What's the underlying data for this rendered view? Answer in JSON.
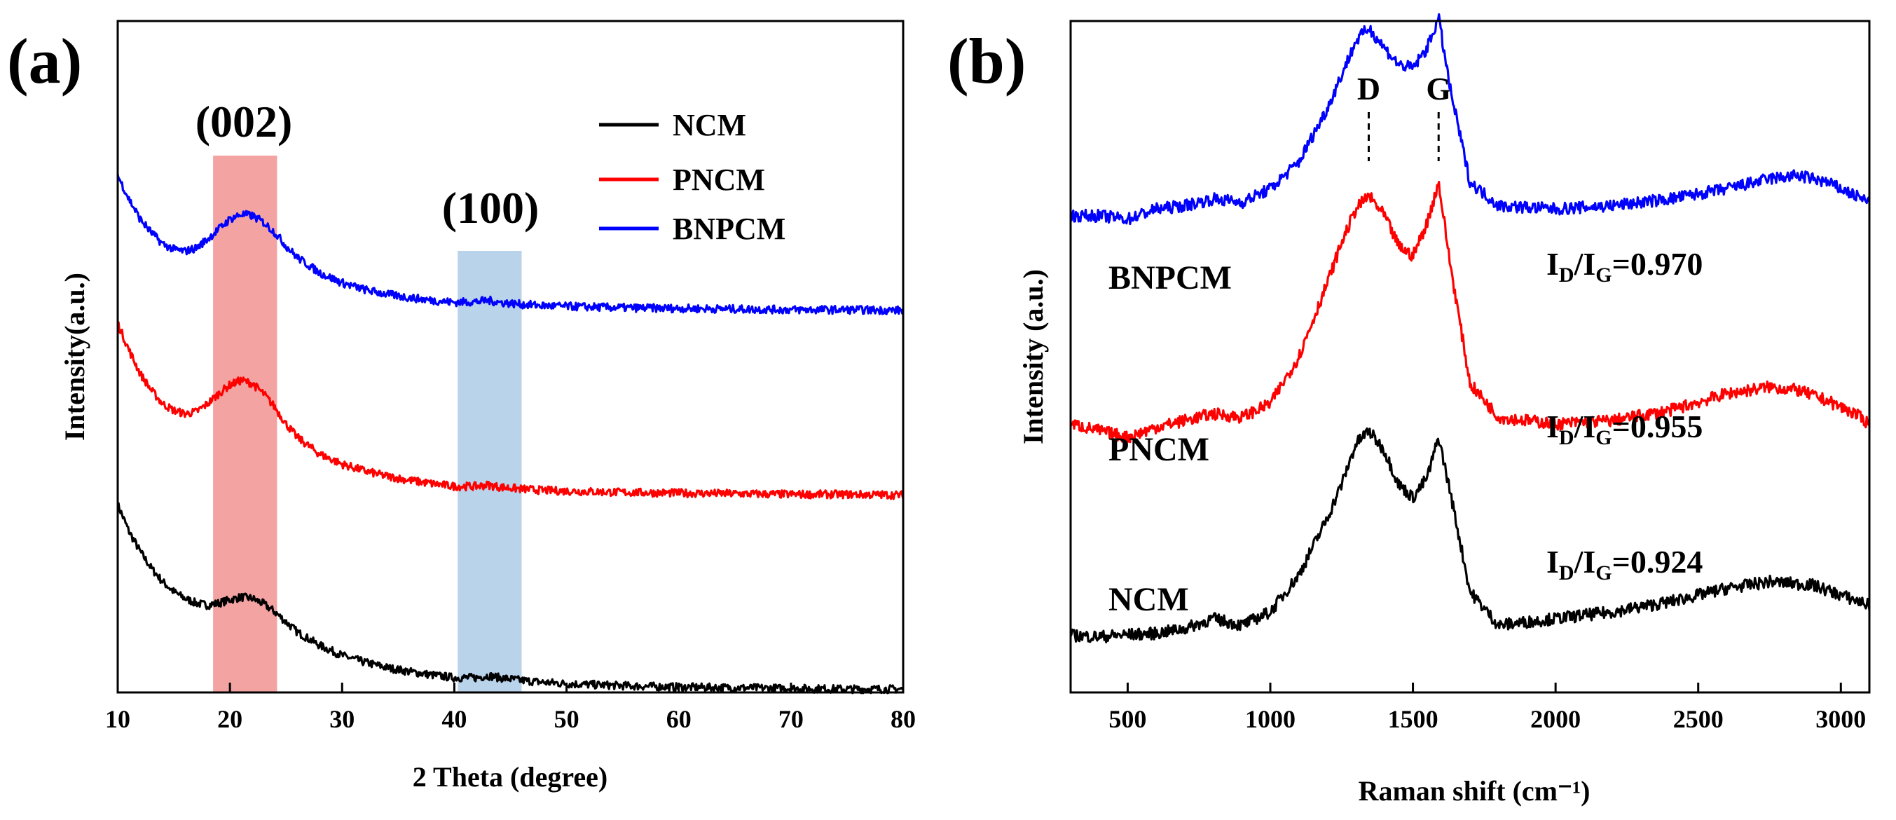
{
  "colors": {
    "NCM": "#000000",
    "PNCM": "#ff0000",
    "BNPCM": "#0000ff",
    "band_002": "#f4a3a3",
    "band_100": "#b9d3ea"
  },
  "chart_data": [
    {
      "panel": "(a)",
      "type": "line",
      "xlabel": "2 Theta (degree)",
      "ylabel": "Intensity(a.u.)",
      "xlim": [
        10,
        80
      ],
      "ylim": [
        0,
        1
      ],
      "xticks": [
        10,
        20,
        30,
        40,
        50,
        60,
        70,
        80
      ],
      "yticks_visible": false,
      "legend": {
        "position": "top-right",
        "entries": [
          "NCM",
          "PNCM",
          "BNPCM"
        ]
      },
      "bands": [
        {
          "label": "(002)",
          "from": 18.5,
          "to": 24.2,
          "color": "#f4a3a3"
        },
        {
          "label": "(100)",
          "from": 40.3,
          "to": 46.0,
          "color": "#b9d3ea"
        }
      ],
      "series": [
        {
          "name": "NCM",
          "color": "#000000",
          "x": [
            10,
            11,
            12,
            13,
            14,
            15,
            16,
            17,
            18,
            19,
            20,
            21,
            22,
            23,
            24,
            25,
            26,
            28,
            30,
            32,
            34,
            36,
            38,
            40,
            42,
            43,
            44,
            46,
            48,
            50,
            55,
            60,
            65,
            70,
            75,
            80
          ],
          "y": [
            0.28,
            0.24,
            0.21,
            0.185,
            0.165,
            0.15,
            0.14,
            0.133,
            0.13,
            0.133,
            0.138,
            0.142,
            0.14,
            0.132,
            0.12,
            0.105,
            0.09,
            0.07,
            0.055,
            0.045,
            0.037,
            0.031,
            0.026,
            0.022,
            0.022,
            0.025,
            0.022,
            0.018,
            0.015,
            0.013,
            0.01,
            0.008,
            0.007,
            0.006,
            0.005,
            0.005
          ]
        },
        {
          "name": "PNCM",
          "color": "#ff0000",
          "x": [
            10,
            11,
            12,
            13,
            14,
            15,
            16,
            17,
            18,
            19,
            20,
            21,
            22,
            23,
            24,
            25,
            26,
            28,
            30,
            32,
            34,
            36,
            38,
            40,
            42,
            43,
            44,
            46,
            48,
            50,
            55,
            60,
            65,
            70,
            75,
            80
          ],
          "y": [
            0.55,
            0.51,
            0.475,
            0.45,
            0.43,
            0.42,
            0.415,
            0.418,
            0.43,
            0.445,
            0.458,
            0.465,
            0.46,
            0.445,
            0.425,
            0.4,
            0.38,
            0.355,
            0.34,
            0.33,
            0.322,
            0.316,
            0.311,
            0.307,
            0.307,
            0.309,
            0.306,
            0.303,
            0.301,
            0.3,
            0.298,
            0.297,
            0.296,
            0.295,
            0.295,
            0.294
          ]
        },
        {
          "name": "BNPCM",
          "color": "#0000ff",
          "x": [
            10,
            11,
            12,
            13,
            14,
            15,
            16,
            17,
            18,
            19,
            20,
            21,
            22,
            23,
            24,
            25,
            26,
            28,
            30,
            32,
            34,
            36,
            38,
            40,
            42,
            43,
            44,
            46,
            48,
            50,
            55,
            60,
            65,
            70,
            75,
            80
          ],
          "y": [
            0.77,
            0.735,
            0.705,
            0.685,
            0.668,
            0.66,
            0.657,
            0.662,
            0.675,
            0.69,
            0.705,
            0.712,
            0.71,
            0.7,
            0.685,
            0.665,
            0.648,
            0.625,
            0.61,
            0.6,
            0.593,
            0.588,
            0.584,
            0.581,
            0.582,
            0.584,
            0.581,
            0.578,
            0.576,
            0.575,
            0.573,
            0.572,
            0.571,
            0.57,
            0.57,
            0.569
          ]
        }
      ]
    },
    {
      "panel": "(b)",
      "type": "line",
      "xlabel": "Raman shift (cm⁻¹)",
      "ylabel": "Intensity (a.u.)",
      "xlim": [
        300,
        3100
      ],
      "ylim": [
        0,
        1
      ],
      "xticks": [
        500,
        1000,
        1500,
        2000,
        2500,
        3000
      ],
      "yticks_visible": false,
      "peak_markers": [
        {
          "label": "D",
          "x": 1345
        },
        {
          "label": "G",
          "x": 1590
        }
      ],
      "series": [
        {
          "name": "NCM",
          "color": "#000000",
          "ratio": "0.924",
          "x": [
            300,
            400,
            500,
            600,
            700,
            800,
            900,
            1000,
            1100,
            1200,
            1250,
            1300,
            1345,
            1400,
            1450,
            1500,
            1550,
            1590,
            1630,
            1700,
            1800,
            2000,
            2200,
            2400,
            2600,
            2750,
            2900,
            3000,
            3100
          ],
          "y": [
            0.085,
            0.083,
            0.086,
            0.088,
            0.095,
            0.11,
            0.1,
            0.12,
            0.175,
            0.26,
            0.31,
            0.37,
            0.39,
            0.36,
            0.31,
            0.29,
            0.32,
            0.38,
            0.3,
            0.15,
            0.1,
            0.11,
            0.12,
            0.135,
            0.155,
            0.165,
            0.16,
            0.145,
            0.13
          ]
        },
        {
          "name": "PNCM",
          "color": "#ff0000",
          "ratio": "0.955",
          "x": [
            300,
            400,
            500,
            600,
            700,
            800,
            900,
            1000,
            1100,
            1200,
            1250,
            1300,
            1345,
            1400,
            1450,
            1500,
            1550,
            1590,
            1630,
            1700,
            1800,
            2000,
            2200,
            2400,
            2600,
            2750,
            2850,
            2950,
            3050,
            3100
          ],
          "y": [
            0.4,
            0.39,
            0.38,
            0.395,
            0.405,
            0.415,
            0.41,
            0.43,
            0.5,
            0.61,
            0.67,
            0.72,
            0.74,
            0.71,
            0.665,
            0.65,
            0.7,
            0.76,
            0.64,
            0.46,
            0.41,
            0.4,
            0.405,
            0.42,
            0.445,
            0.455,
            0.45,
            0.435,
            0.415,
            0.4
          ]
        },
        {
          "name": "BNPCM",
          "color": "#0000ff",
          "ratio": "0.970",
          "x": [
            300,
            400,
            500,
            600,
            700,
            800,
            900,
            1000,
            1100,
            1200,
            1250,
            1300,
            1345,
            1400,
            1450,
            1500,
            1550,
            1590,
            1630,
            1700,
            1800,
            2000,
            2200,
            2400,
            2600,
            2750,
            2850,
            2950,
            3050,
            3100
          ],
          "y": [
            0.71,
            0.71,
            0.705,
            0.72,
            0.725,
            0.735,
            0.73,
            0.75,
            0.79,
            0.87,
            0.92,
            0.97,
            0.99,
            0.96,
            0.935,
            0.93,
            0.96,
            1.005,
            0.9,
            0.76,
            0.725,
            0.72,
            0.725,
            0.735,
            0.75,
            0.765,
            0.77,
            0.76,
            0.74,
            0.73
          ]
        }
      ]
    }
  ]
}
